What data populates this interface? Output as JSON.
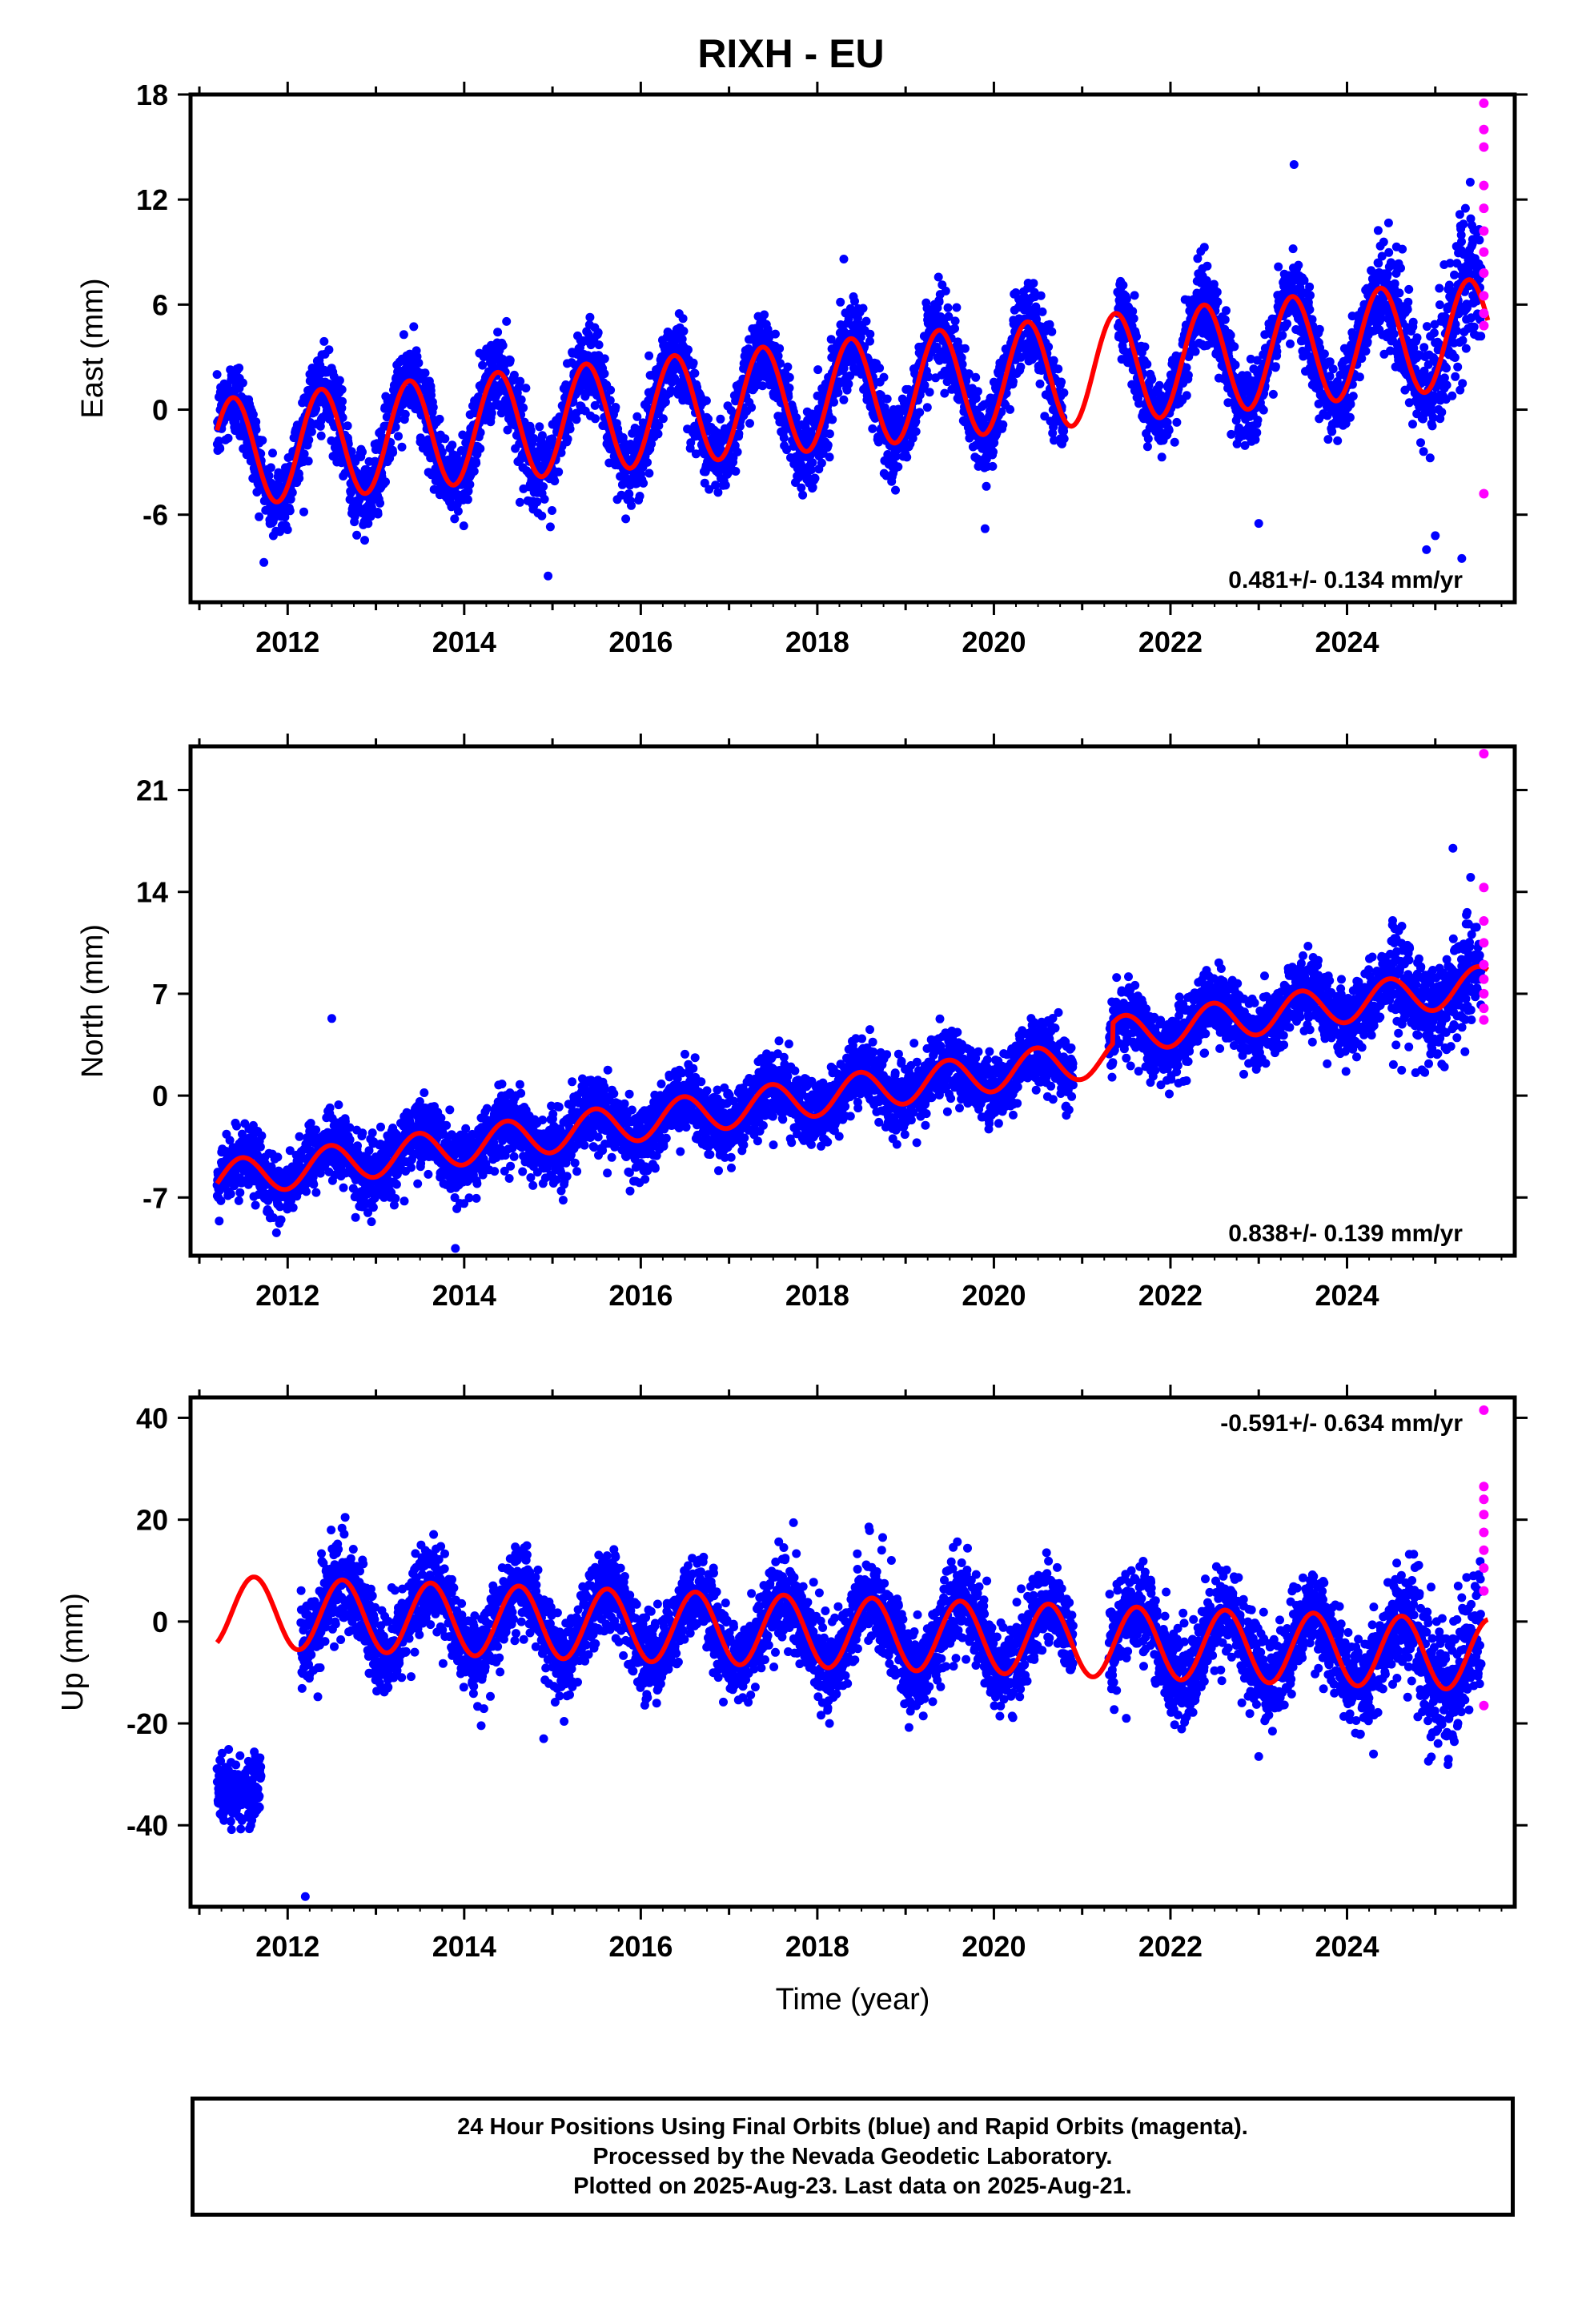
{
  "title": "RIXH - EU",
  "colors": {
    "final_orbits": "#0000ff",
    "rapid_orbits": "#ff00ff",
    "model": "#ff0000",
    "frame": "#000000"
  },
  "footer": {
    "line1": "24 Hour Positions Using Final Orbits (blue) and Rapid Orbits (magenta).",
    "line2": "Processed by the Nevada Geodetic Laboratory.",
    "line3": "Plotted on 2025-Aug-23. Last data on 2025-Aug-21."
  },
  "chart_data": [
    {
      "type": "scatter",
      "ylabel": "East (mm)",
      "xlabel": "",
      "xlim": [
        2010.9,
        2025.9
      ],
      "ylim": [
        -11,
        18
      ],
      "yticks": [
        -6,
        0,
        6,
        12,
        18
      ],
      "xticks": [
        2012,
        2014,
        2016,
        2018,
        2020,
        2022,
        2024
      ],
      "rate_text": "0.481+/- 0.134 mm/yr",
      "rate_position": "bottom-right",
      "series": [
        {
          "kind": "final_orbits",
          "gaps": [
            [
              2020.8,
              2021.4
            ]
          ],
          "outliers": [
            [
              2014.95,
              -9.5
            ],
            [
              2018.3,
              8.6
            ],
            [
              2023.4,
              14.0
            ],
            [
              2023.0,
              -6.5
            ],
            [
              2019.9,
              -6.8
            ],
            [
              2024.9,
              -8.0
            ],
            [
              2025.0,
              -7.2
            ],
            [
              2025.3,
              -8.5
            ]
          ]
        },
        {
          "kind": "rapid_orbits",
          "x": [
            2025.55,
            2025.55,
            2025.55,
            2025.55,
            2025.55,
            2025.55,
            2025.55,
            2025.55,
            2025.55,
            2025.55,
            2025.55,
            2025.55
          ],
          "y": [
            17.5,
            16.0,
            15.0,
            12.8,
            11.5,
            10.2,
            9.0,
            7.8,
            6.5,
            5.5,
            4.8,
            -4.8
          ]
        },
        {
          "kind": "model",
          "offset_at_start": -2.5,
          "rate": 0.481,
          "annual_amplitude": 3.1,
          "annual_phase_peak": 0.38
        }
      ]
    },
    {
      "type": "scatter",
      "ylabel": "North (mm)",
      "xlabel": "",
      "xlim": [
        2010.9,
        2025.9
      ],
      "ylim": [
        -11,
        24
      ],
      "yticks": [
        -7,
        0,
        7,
        14,
        21
      ],
      "xticks": [
        2012,
        2014,
        2016,
        2018,
        2020,
        2022,
        2024
      ],
      "rate_text": "0.838+/- 0.139 mm/yr",
      "rate_position": "bottom-right",
      "series": [
        {
          "kind": "final_orbits",
          "gaps": [
            [
              2020.9,
              2021.3
            ]
          ],
          "outliers": [
            [
              2012.5,
              5.3
            ],
            [
              2013.9,
              -10.5
            ],
            [
              2025.2,
              17.0
            ],
            [
              2025.4,
              15.0
            ]
          ]
        },
        {
          "kind": "rapid_orbits",
          "x": [
            2025.55,
            2025.55,
            2025.55,
            2025.55,
            2025.55,
            2025.55,
            2025.55,
            2025.55,
            2025.55
          ],
          "y": [
            23.5,
            14.3,
            12.0,
            10.5,
            9.0,
            8.0,
            7.0,
            6.0,
            5.2
          ]
        },
        {
          "kind": "model",
          "offset_at_start": -5.8,
          "rate": 0.838,
          "annual_amplitude": 1.3,
          "annual_phase_peak": 0.48,
          "step_at": 2021.35,
          "step_size": 1.4
        }
      ]
    },
    {
      "type": "scatter",
      "ylabel": "Up (mm)",
      "xlabel": "Time (year)",
      "xlim": [
        2010.9,
        2025.9
      ],
      "ylim": [
        -56,
        44
      ],
      "yticks": [
        -40,
        -20,
        0,
        20,
        40
      ],
      "xticks": [
        2012,
        2014,
        2016,
        2018,
        2020,
        2022,
        2024
      ],
      "rate_text": "-0.591+/- 0.634 mm/yr",
      "rate_position": "top-right",
      "series": [
        {
          "kind": "final_orbits",
          "gaps": [
            [
              2011.7,
              2012.15
            ],
            [
              2020.9,
              2021.3
            ]
          ],
          "early_cluster": {
            "x_range": [
              2011.15,
              2012.25
            ],
            "y_center": -33,
            "spread": 7
          },
          "outliers": [
            [
              2012.2,
              -54
            ],
            [
              2014.9,
              -23
            ],
            [
              2023.0,
              -26.5
            ],
            [
              2024.3,
              -26
            ],
            [
              2021.5,
              -19
            ]
          ]
        },
        {
          "kind": "rapid_orbits",
          "x": [
            2025.55,
            2025.55,
            2025.55,
            2025.55,
            2025.55,
            2025.55,
            2025.55,
            2025.55,
            2025.55
          ],
          "y": [
            41.5,
            26.5,
            24.0,
            21.0,
            17.5,
            14.0,
            10.5,
            6.0,
            -16.5
          ]
        },
        {
          "kind": "model",
          "offset_at_start": 2.0,
          "rate": -0.591,
          "annual_amplitude": 7.0,
          "annual_phase_peak": 0.62
        }
      ]
    }
  ]
}
